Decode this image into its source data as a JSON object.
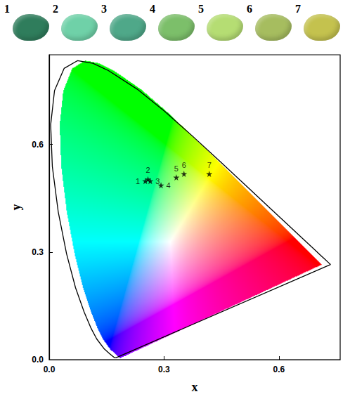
{
  "chart_data": {
    "type": "scatter",
    "xlabel": "x",
    "ylabel": "y",
    "x": [
      0.251,
      0.258,
      0.264,
      0.292,
      0.332,
      0.352,
      0.418
    ],
    "y": [
      0.498,
      0.503,
      0.498,
      0.486,
      0.508,
      0.518,
      0.518
    ],
    "labels": [
      "1",
      "2",
      "3",
      "4",
      "5",
      "6",
      "7"
    ],
    "color": "#000000",
    "marker": "star",
    "xlim": [
      0,
      0.76
    ],
    "ylim": [
      0,
      0.85
    ],
    "xticks": [
      {
        "value": 0,
        "label": "0.0"
      },
      0.3,
      0.6
    ],
    "yticks": [
      {
        "value": 0,
        "label": "0.0"
      },
      0.3,
      0.6
    ],
    "grid": false,
    "locus": {
      "x": [
        0.1741,
        0.1733,
        0.1714,
        0.1689,
        0.1644,
        0.1566,
        0.144,
        0.1241,
        0.1096,
        0.0913,
        0.0687,
        0.0454,
        0.0235,
        0.0082,
        0.0039,
        0.0139,
        0.0389,
        0.0743,
        0.1142,
        0.1547,
        0.2296,
        0.3016,
        0.3731,
        0.4441,
        0.5125,
        0.5752,
        0.627,
        0.6658,
        0.6915,
        0.7079,
        0.719,
        0.73,
        0.7347
      ],
      "y": [
        0.005,
        0.0048,
        0.0051,
        0.0069,
        0.0109,
        0.0177,
        0.0297,
        0.0578,
        0.0868,
        0.1327,
        0.2007,
        0.295,
        0.4127,
        0.5384,
        0.6548,
        0.7502,
        0.812,
        0.8338,
        0.8262,
        0.8059,
        0.7543,
        0.6923,
        0.6245,
        0.5547,
        0.4866,
        0.4242,
        0.3725,
        0.334,
        0.3083,
        0.292,
        0.2809,
        0.27,
        0.2653
      ]
    },
    "swatches": {
      "labels": [
        "1",
        "2",
        "3",
        "4",
        "5",
        "6",
        "7"
      ],
      "colors": [
        "#2f7d5c",
        "#6fd1a8",
        "#4fa889",
        "#7cbf6a",
        "#b5dd73",
        "#a6bd5f",
        "#c4c24e"
      ]
    }
  }
}
